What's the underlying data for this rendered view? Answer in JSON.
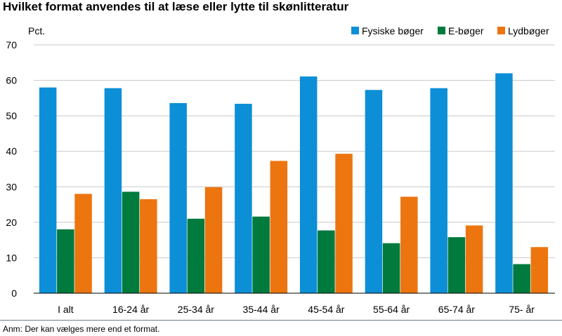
{
  "title": "Hvilket format anvendes til at læse eller lytte til skønlitteratur",
  "note": "Anm: Der kan vælges mere end et format.",
  "chart_data": {
    "type": "bar",
    "ylabel": "Pct.",
    "ylim": [
      0,
      70
    ],
    "yticks": [
      0,
      10,
      20,
      30,
      40,
      50,
      60,
      70
    ],
    "grid": true,
    "legend_position": "top-right",
    "categories": [
      "I alt",
      "16-24 år",
      "25-34 år",
      "35-44 år",
      "45-54 år",
      "55-64 år",
      "65-74 år",
      "75- år"
    ],
    "series": [
      {
        "name": "Fysiske bøger",
        "color": "#0c8fd6",
        "values": [
          58.0,
          57.8,
          53.6,
          53.4,
          61.1,
          57.3,
          57.8,
          62.0
        ]
      },
      {
        "name": "E-bøger",
        "color": "#007a3d",
        "values": [
          18.0,
          28.6,
          21.0,
          21.6,
          17.7,
          14.1,
          15.8,
          8.2
        ]
      },
      {
        "name": "Lydbøger",
        "color": "#ec7510",
        "values": [
          28.0,
          26.5,
          29.9,
          37.3,
          39.3,
          27.2,
          19.1,
          13.0
        ]
      }
    ]
  }
}
